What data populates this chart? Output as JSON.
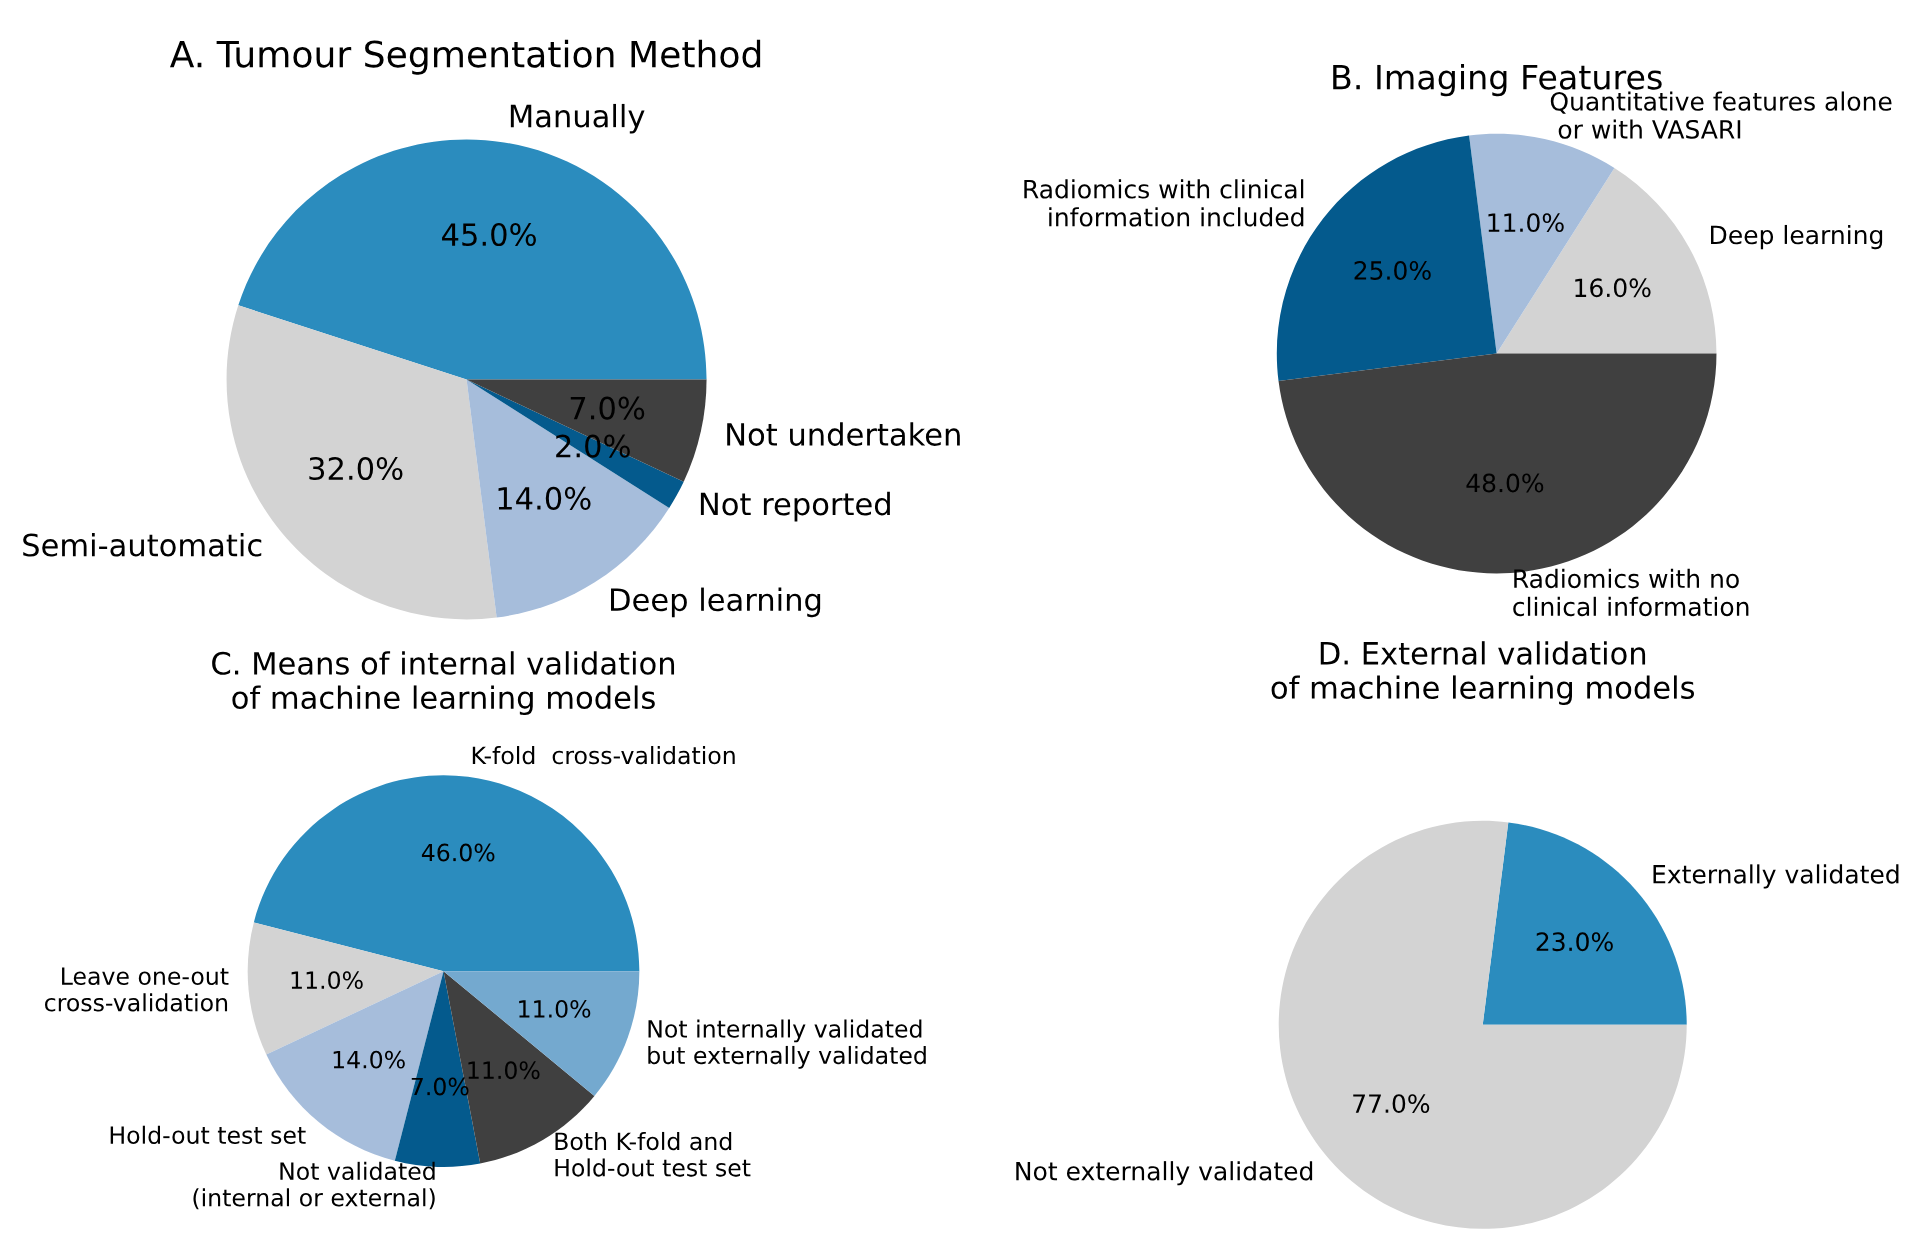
{
  "chart_data": [
    {
      "type": "pie",
      "title": "A. Tumour Segmentation Method",
      "categories": [
        "Manually",
        "Semi-automatic",
        "Deep learning",
        "Not reported",
        "Not undertaken"
      ],
      "values": [
        45,
        32,
        14,
        2,
        7
      ],
      "value_labels": [
        "45.0%",
        "32.0%",
        "14.0%",
        "2.0%",
        "7.0%"
      ],
      "colors": [
        "#2b8cbe",
        "#d3d3d3",
        "#a6bddb",
        "#045a8d",
        "#404040"
      ]
    },
    {
      "type": "pie",
      "title": "B. Imaging Features",
      "categories": [
        "Deep learning",
        "Quantitative features alone\n or with VASARI",
        "Radiomics with clinical\ninformation included",
        "Radiomics with no\nclinical information"
      ],
      "values": [
        16,
        11,
        25,
        48
      ],
      "value_labels": [
        "16.0%",
        "11.0%",
        "25.0%",
        "48.0%"
      ],
      "colors": [
        "#d3d3d3",
        "#a6bddb",
        "#045a8d",
        "#404040"
      ]
    },
    {
      "type": "pie",
      "title": "C. Means of internal validation\nof machine learning models",
      "categories": [
        "K-fold  cross-validation",
        "Leave one-out\ncross-validation",
        "Hold-out test set",
        "Not validated\n(internal or external)",
        "Both K-fold and\nHold-out test set",
        "Not internally validated\nbut externally validated"
      ],
      "values": [
        46,
        11,
        14,
        7,
        11,
        11
      ],
      "value_labels": [
        "46.0%",
        "11.0%",
        "14.0%",
        "7.0%",
        "11.0%",
        "11.0%"
      ],
      "colors": [
        "#2b8cbe",
        "#d3d3d3",
        "#a6bddb",
        "#045a8d",
        "#404040",
        "#74a9cf"
      ]
    },
    {
      "type": "pie",
      "title": "D. External validation\nof machine learning models",
      "categories": [
        "Externally validated",
        "Not externally validated"
      ],
      "values": [
        23,
        77
      ],
      "value_labels": [
        "23.0%",
        "77.0%"
      ],
      "colors": [
        "#2b8cbe",
        "#d3d3d3"
      ]
    }
  ]
}
